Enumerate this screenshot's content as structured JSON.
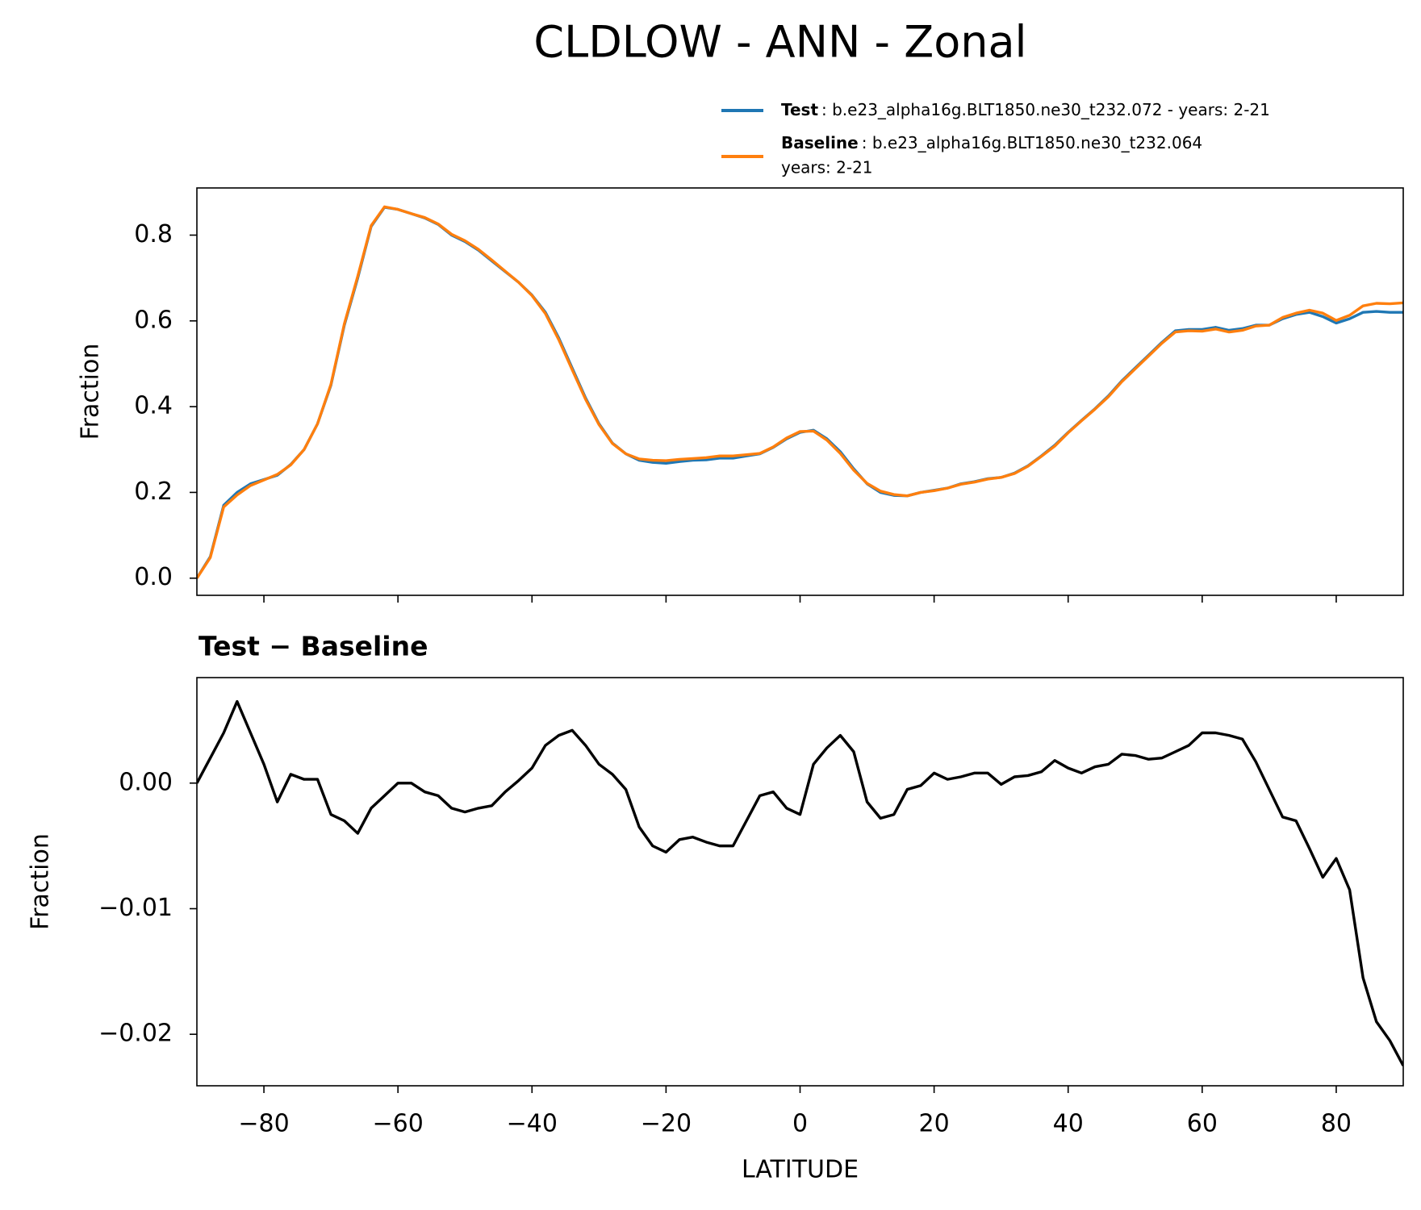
{
  "title": "CLDLOW - ANN - Zonal",
  "chart_data": [
    {
      "type": "line",
      "ylabel": "Fraction",
      "legend": "above right",
      "xlim": [
        -90,
        90
      ],
      "ylim": [
        -0.04,
        0.91
      ],
      "yticks": [
        {
          "value": 0,
          "label": "0.0"
        },
        0.2,
        0.4,
        0.6,
        0.8
      ],
      "x": [
        -90,
        -88,
        -86,
        -84,
        -82,
        -80,
        -78,
        -76,
        -74,
        -72,
        -70,
        -68,
        -66,
        -64,
        -62,
        -60,
        -58,
        -56,
        -54,
        -52,
        -50,
        -48,
        -46,
        -44,
        -42,
        -40,
        -38,
        -36,
        -34,
        -32,
        -30,
        -28,
        -26,
        -24,
        -22,
        -20,
        -18,
        -16,
        -14,
        -12,
        -10,
        -8,
        -6,
        -4,
        -2,
        0,
        2,
        4,
        6,
        8,
        10,
        12,
        14,
        16,
        18,
        20,
        22,
        24,
        26,
        28,
        30,
        32,
        34,
        36,
        38,
        40,
        42,
        44,
        46,
        48,
        50,
        52,
        54,
        56,
        58,
        60,
        62,
        64,
        66,
        68,
        70,
        72,
        74,
        76,
        78,
        80,
        82,
        84,
        86,
        88,
        90
      ],
      "series": [
        {
          "name": "Test",
          "description": [
            ": b.e23_alpha16g.BLT1850.ne30_t232.072 - years: 2-21"
          ],
          "color": "#1f77b4",
          "values": [
            0.0,
            0.05,
            0.17,
            0.2,
            0.22,
            0.23,
            0.24,
            0.265,
            0.3,
            0.36,
            0.45,
            0.59,
            0.7,
            0.82,
            0.865,
            0.86,
            0.85,
            0.84,
            0.825,
            0.8,
            0.785,
            0.765,
            0.74,
            0.715,
            0.69,
            0.66,
            0.62,
            0.56,
            0.49,
            0.42,
            0.36,
            0.315,
            0.29,
            0.275,
            0.27,
            0.268,
            0.272,
            0.275,
            0.276,
            0.28,
            0.28,
            0.285,
            0.29,
            0.305,
            0.325,
            0.34,
            0.345,
            0.325,
            0.295,
            0.255,
            0.22,
            0.2,
            0.193,
            0.192,
            0.2,
            0.205,
            0.21,
            0.22,
            0.225,
            0.232,
            0.235,
            0.245,
            0.262,
            0.285,
            0.31,
            0.34,
            0.368,
            0.395,
            0.425,
            0.46,
            0.49,
            0.52,
            0.55,
            0.577,
            0.58,
            0.58,
            0.585,
            0.578,
            0.582,
            0.59,
            0.59,
            0.605,
            0.615,
            0.62,
            0.61,
            0.595,
            0.605,
            0.62,
            0.622,
            0.62,
            0.62
          ]
        },
        {
          "name": "Baseline",
          "description": [
            ": b.e23_alpha16g.BLT1850.ne30_t232.064",
            "years: 2-21"
          ],
          "color": "#ff7f0e",
          "values": [
            0.0,
            0.048,
            0.166,
            0.194,
            0.216,
            0.229,
            0.242,
            0.264,
            0.3,
            0.36,
            0.452,
            0.593,
            0.704,
            0.822,
            0.866,
            0.86,
            0.85,
            0.841,
            0.826,
            0.802,
            0.787,
            0.767,
            0.742,
            0.716,
            0.69,
            0.659,
            0.617,
            0.556,
            0.486,
            0.417,
            0.358,
            0.314,
            0.29,
            0.278,
            0.275,
            0.274,
            0.277,
            0.279,
            0.281,
            0.285,
            0.285,
            0.288,
            0.291,
            0.306,
            0.327,
            0.342,
            0.343,
            0.322,
            0.291,
            0.252,
            0.221,
            0.203,
            0.195,
            0.192,
            0.2,
            0.204,
            0.21,
            0.219,
            0.224,
            0.231,
            0.235,
            0.244,
            0.261,
            0.284,
            0.308,
            0.339,
            0.367,
            0.394,
            0.423,
            0.458,
            0.488,
            0.518,
            0.548,
            0.574,
            0.577,
            0.576,
            0.581,
            0.574,
            0.578,
            0.588,
            0.59,
            0.608,
            0.618,
            0.625,
            0.618,
            0.601,
            0.613,
            0.635,
            0.641,
            0.64,
            0.642
          ]
        }
      ]
    },
    {
      "type": "line",
      "title": "Test − Baseline",
      "ylabel": "Fraction",
      "xlabel": "LATITUDE",
      "xlim": [
        -90,
        90
      ],
      "ylim": [
        -0.0241,
        0.0084
      ],
      "xticks": [
        {
          "value": -80,
          "label": "−80"
        },
        {
          "value": -60,
          "label": "−60"
        },
        {
          "value": -40,
          "label": "−40"
        },
        {
          "value": -20,
          "label": "−20"
        },
        0,
        20,
        40,
        60,
        80
      ],
      "yticks": [
        {
          "value": 0,
          "label": "0.00"
        },
        {
          "value": -0.01,
          "label": "−0.01"
        },
        {
          "value": -0.02,
          "label": "−0.02"
        }
      ],
      "x": [
        -90,
        -88,
        -86,
        -84,
        -82,
        -80,
        -78,
        -76,
        -74,
        -72,
        -70,
        -68,
        -66,
        -64,
        -62,
        -60,
        -58,
        -56,
        -54,
        -52,
        -50,
        -48,
        -46,
        -44,
        -42,
        -40,
        -38,
        -36,
        -34,
        -32,
        -30,
        -28,
        -26,
        -24,
        -22,
        -20,
        -18,
        -16,
        -14,
        -12,
        -10,
        -8,
        -6,
        -4,
        -2,
        0,
        2,
        4,
        6,
        8,
        10,
        12,
        14,
        16,
        18,
        20,
        22,
        24,
        26,
        28,
        30,
        32,
        34,
        36,
        38,
        40,
        42,
        44,
        46,
        48,
        50,
        52,
        54,
        56,
        58,
        60,
        62,
        64,
        66,
        68,
        70,
        72,
        74,
        76,
        78,
        80,
        82,
        84,
        86,
        88,
        90
      ],
      "series": [
        {
          "color": "#000000",
          "values": [
            0.0,
            0.002,
            0.004,
            0.0065,
            0.004,
            0.0015,
            -0.0015,
            0.0007,
            0.0003,
            0.0003,
            -0.0025,
            -0.003,
            -0.004,
            -0.002,
            -0.001,
            0.0,
            0.0,
            -0.0007,
            -0.001,
            -0.002,
            -0.0023,
            -0.002,
            -0.0018,
            -0.0007,
            0.0002,
            0.0012,
            0.003,
            0.0038,
            0.0042,
            0.003,
            0.0015,
            0.0007,
            -0.0005,
            -0.0035,
            -0.005,
            -0.0055,
            -0.0045,
            -0.0043,
            -0.0047,
            -0.005,
            -0.005,
            -0.003,
            -0.001,
            -0.0007,
            -0.002,
            -0.0025,
            0.0015,
            0.0028,
            0.0038,
            0.0025,
            -0.0015,
            -0.0028,
            -0.0025,
            -0.0005,
            -0.0002,
            0.0008,
            0.0003,
            0.0005,
            0.0008,
            0.0008,
            -0.0001,
            0.0005,
            0.0006,
            0.0009,
            0.0018,
            0.0012,
            0.0008,
            0.0013,
            0.0015,
            0.0023,
            0.0022,
            0.0019,
            0.002,
            0.0025,
            0.003,
            0.004,
            0.004,
            0.0038,
            0.0035,
            0.0017,
            -0.0005,
            -0.0027,
            -0.003,
            -0.0052,
            -0.0075,
            -0.006,
            -0.0085,
            -0.0155,
            -0.019,
            -0.0205,
            -0.0225
          ]
        }
      ]
    }
  ]
}
